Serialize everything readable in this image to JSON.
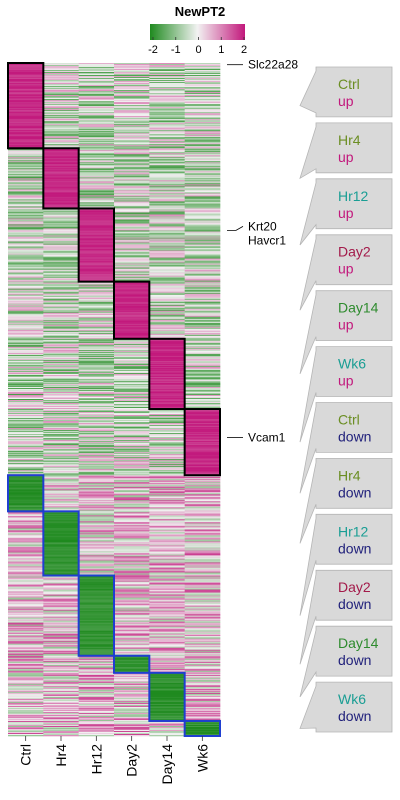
{
  "chart_data": {
    "type": "heatmap",
    "title": "NewPT2",
    "legend": {
      "placement": "top",
      "ticks": [
        "-2",
        "-1",
        "0",
        "1",
        "2"
      ],
      "range": [
        -2,
        2
      ],
      "low_color": "#1f8a1f",
      "mid_color": "#f2f2f2",
      "high_color": "#c2187c"
    },
    "columns": [
      "Ctrl",
      "Hr4",
      "Hr12",
      "Day2",
      "Day14",
      "Wk6"
    ],
    "clusters": [
      {
        "timepoint": "Ctrl",
        "direction": "up",
        "rows": 85,
        "color": "#6b8e23",
        "dir_color": "#c2187c"
      },
      {
        "timepoint": "Hr4",
        "direction": "up",
        "rows": 60,
        "color": "#6b8e23",
        "dir_color": "#c2187c"
      },
      {
        "timepoint": "Hr12",
        "direction": "up",
        "rows": 73,
        "color": "#1a9e94",
        "dir_color": "#c2187c"
      },
      {
        "timepoint": "Day2",
        "direction": "up",
        "rows": 57,
        "color": "#a31a4a",
        "dir_color": "#c2187c"
      },
      {
        "timepoint": "Day14",
        "direction": "up",
        "rows": 70,
        "color": "#2e8b2e",
        "dir_color": "#c2187c"
      },
      {
        "timepoint": "Wk6",
        "direction": "up",
        "rows": 66,
        "color": "#1a9e94",
        "dir_color": "#c2187c"
      },
      {
        "timepoint": "Ctrl",
        "direction": "down",
        "rows": 36,
        "color": "#6b8e23",
        "dir_color": "#1f1f7a"
      },
      {
        "timepoint": "Hr4",
        "direction": "down",
        "rows": 64,
        "color": "#6b8e23",
        "dir_color": "#1f1f7a"
      },
      {
        "timepoint": "Hr12",
        "direction": "down",
        "rows": 80,
        "color": "#1a9e94",
        "dir_color": "#1f1f7a"
      },
      {
        "timepoint": "Day2",
        "direction": "down",
        "rows": 17,
        "color": "#a31a4a",
        "dir_color": "#1f1f7a"
      },
      {
        "timepoint": "Day14",
        "direction": "down",
        "rows": 48,
        "color": "#2e8b2e",
        "dir_color": "#1f1f7a"
      },
      {
        "timepoint": "Wk6",
        "direction": "down",
        "rows": 15,
        "color": "#1a9e94",
        "dir_color": "#1f1f7a"
      }
    ],
    "cluster_box_colors": {
      "up": "#000000",
      "down": "#1f3fd1"
    },
    "gene_annotations": [
      {
        "genes": [
          "Slc22a28"
        ],
        "cluster_index": 0,
        "offset": 0.02
      },
      {
        "genes": [
          "Krt20",
          "Havcr1"
        ],
        "cluster_index": 2,
        "offset": 0.3
      },
      {
        "genes": [
          "Vcam1"
        ],
        "cluster_index": 5,
        "offset": 0.43
      }
    ],
    "grid": false
  }
}
